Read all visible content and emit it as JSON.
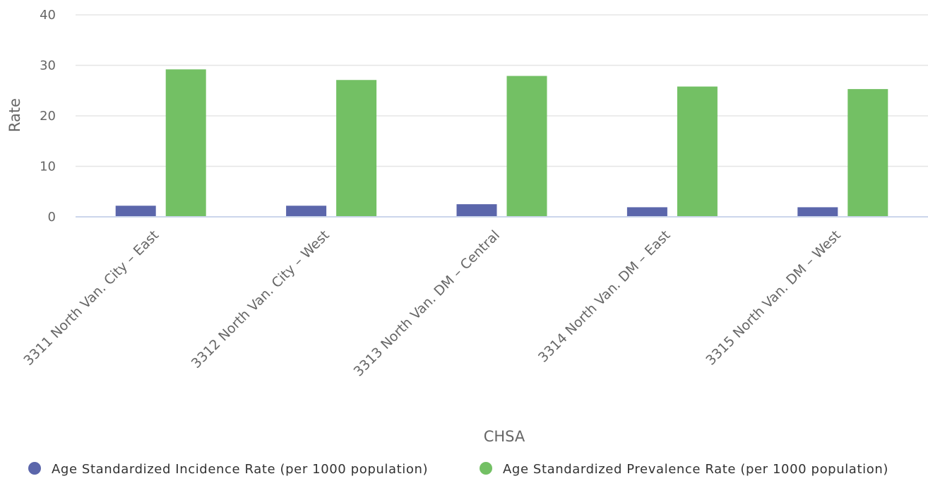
{
  "chart_data": {
    "type": "bar",
    "title": "",
    "xlabel": "CHSA",
    "ylabel": "Rate",
    "ylim": [
      0,
      40
    ],
    "yticks": [
      0,
      10,
      20,
      30,
      40
    ],
    "grid": true,
    "legend_position": "bottom",
    "categories": [
      "3311 North Van. City – East",
      "3312 North Van. City – West",
      "3313 North Van. DM – Central",
      "3314 North Van. DM – East",
      "3315 North Van. DM – West"
    ],
    "series": [
      {
        "name": "Age Standardized Incidence Rate (per 1000 population)",
        "color": "#5b66ab",
        "values": [
          2.2,
          2.2,
          2.5,
          1.9,
          1.9
        ]
      },
      {
        "name": "Age Standardized Prevalence Rate (per 1000 population)",
        "color": "#73c064",
        "values": [
          29.2,
          27.1,
          27.9,
          25.8,
          25.3
        ]
      }
    ]
  }
}
